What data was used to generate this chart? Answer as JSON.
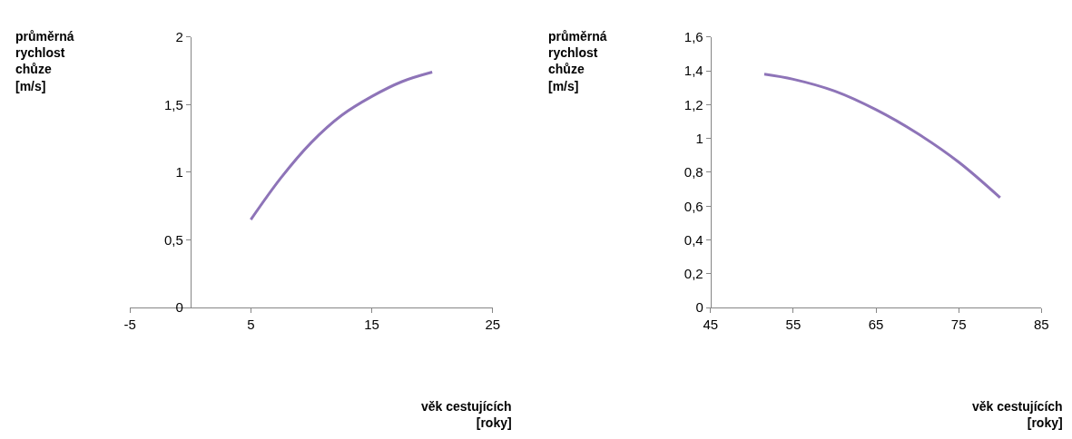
{
  "chart_data": [
    {
      "type": "line",
      "xlabel": "věk cestujících [roky]",
      "ylabel": "průměrná rychlost chůze [m/s]",
      "x": [
        5,
        7.5,
        10,
        12.5,
        15,
        17.5,
        20
      ],
      "series": [
        {
          "color": "#8e74b8",
          "values": [
            0.65,
            0.96,
            1.22,
            1.42,
            1.56,
            1.67,
            1.74
          ]
        }
      ],
      "xlim": [
        -5,
        25
      ],
      "xticks": [
        -5,
        5,
        15,
        25
      ],
      "ylim": [
        0,
        2
      ],
      "yticks": [
        0,
        {
          "value": 0.5,
          "label": "0,5"
        },
        1,
        {
          "value": 1.5,
          "label": "1,5"
        },
        2
      ],
      "marker": "none",
      "line_style": "solid"
    },
    {
      "type": "line",
      "xlabel": "věk cestujících [roky]",
      "ylabel": "průměrná rychlost chůze [m/s]",
      "x": [
        51.5,
        55,
        60,
        65,
        70,
        75,
        80
      ],
      "series": [
        {
          "color": "#8e74b8",
          "values": [
            1.38,
            1.35,
            1.28,
            1.17,
            1.03,
            0.86,
            0.65
          ]
        }
      ],
      "xlim": [
        45,
        85
      ],
      "xticks": [
        45,
        55,
        65,
        75,
        85
      ],
      "ylim": [
        0,
        1.6
      ],
      "yticks": [
        0,
        {
          "value": 0.2,
          "label": "0,2"
        },
        {
          "value": 0.4,
          "label": "0,4"
        },
        {
          "value": 0.6,
          "label": "0,6"
        },
        {
          "value": 0.8,
          "label": "0,8"
        },
        1,
        {
          "value": 1.2,
          "label": "1,2"
        },
        {
          "value": 1.4,
          "label": "1,4"
        },
        {
          "value": 1.6,
          "label": "1,6"
        }
      ],
      "marker": "none",
      "line_style": "solid"
    }
  ]
}
